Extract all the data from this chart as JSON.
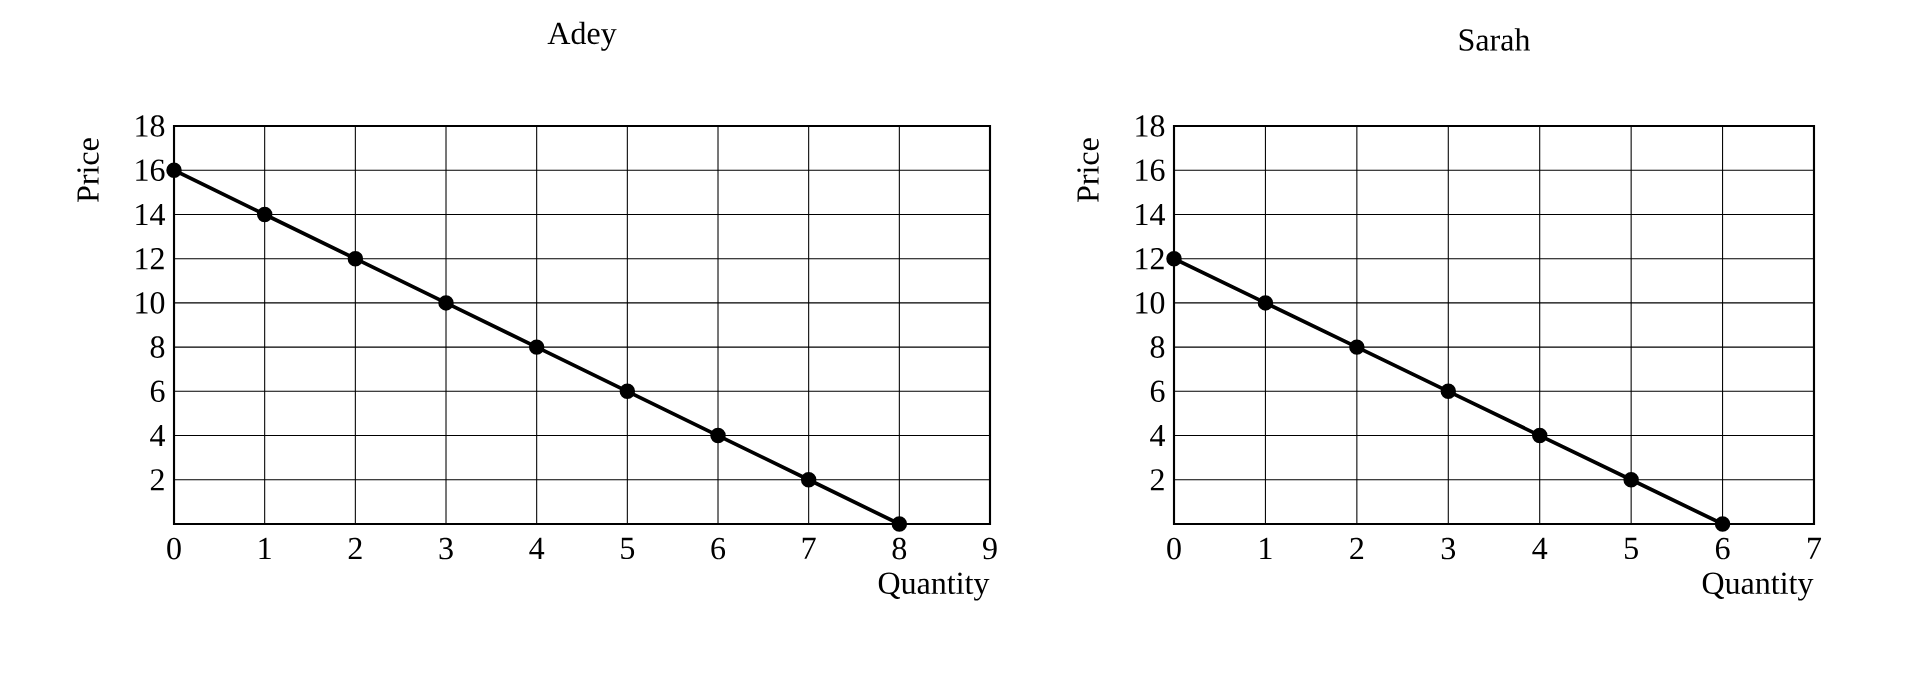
{
  "chart_data": [
    {
      "type": "line",
      "title": "Adey",
      "xlabel": "Quantity",
      "ylabel": "Price",
      "x": [
        0,
        1,
        2,
        3,
        4,
        5,
        6,
        7,
        8
      ],
      "values": [
        16,
        14,
        12,
        10,
        8,
        6,
        4,
        2,
        0
      ],
      "color": "#000000",
      "marker": "circle",
      "line_style": "solid",
      "grid": true,
      "xlim": [
        0,
        9
      ],
      "ylim": [
        0,
        18
      ],
      "xticks": [
        0,
        1,
        2,
        3,
        4,
        5,
        6,
        7,
        8,
        9
      ],
      "yticks": [
        2,
        4,
        6,
        8,
        10,
        12,
        14,
        16,
        18
      ]
    },
    {
      "type": "line",
      "title": "Sarah",
      "xlabel": "Quantity",
      "ylabel": "Price",
      "x": [
        0,
        1,
        2,
        3,
        4,
        5,
        6
      ],
      "values": [
        12,
        10,
        8,
        6,
        4,
        2,
        0
      ],
      "color": "#000000",
      "marker": "circle",
      "line_style": "solid",
      "grid": true,
      "xlim": [
        0,
        7
      ],
      "ylim": [
        0,
        18
      ],
      "xticks": [
        0,
        1,
        2,
        3,
        4,
        5,
        6,
        7
      ],
      "yticks": [
        2,
        4,
        6,
        8,
        10,
        12,
        14,
        16,
        18
      ]
    }
  ]
}
